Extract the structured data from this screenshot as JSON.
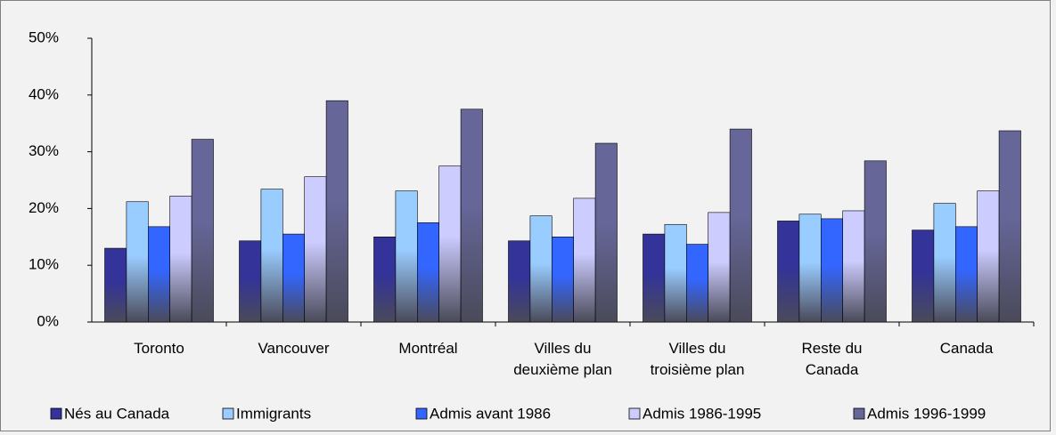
{
  "chart_data": {
    "type": "bar",
    "categories": [
      "Toronto",
      "Vancouver",
      "Montréal",
      "Villes du deuxième plan",
      "Villes du troisième plan",
      "Reste du Canada",
      "Canada"
    ],
    "series": [
      {
        "name": "Nés au Canada",
        "color": "#333399",
        "values": [
          13,
          14.3,
          15,
          14.3,
          15.5,
          17.8,
          16.2
        ]
      },
      {
        "name": "Immigrants",
        "color": "#99ccff",
        "values": [
          21.2,
          23.4,
          23.1,
          18.7,
          17.2,
          19,
          20.9
        ]
      },
      {
        "name": "Admis avant 1986",
        "color": "#3366ff",
        "values": [
          16.8,
          15.5,
          17.5,
          15,
          13.7,
          18.2,
          16.8
        ]
      },
      {
        "name": "Admis 1986-1995",
        "color": "#ccccff",
        "values": [
          22.2,
          25.6,
          27.5,
          21.8,
          19.3,
          19.6,
          23.1
        ]
      },
      {
        "name": "Admis 1996-1999",
        "color": "#666699",
        "values": [
          32.2,
          39,
          37.5,
          31.5,
          34,
          28.4,
          33.7
        ]
      }
    ],
    "ylim": [
      0,
      50
    ],
    "yticks": [
      {
        "value": 0,
        "label": "0%"
      },
      {
        "value": 10,
        "label": "10%"
      },
      {
        "value": 20,
        "label": "20%"
      },
      {
        "value": 30,
        "label": "30%"
      },
      {
        "value": 40,
        "label": "40%"
      },
      {
        "value": 50,
        "label": "50%"
      }
    ],
    "grid": false,
    "legend": "bottom"
  }
}
